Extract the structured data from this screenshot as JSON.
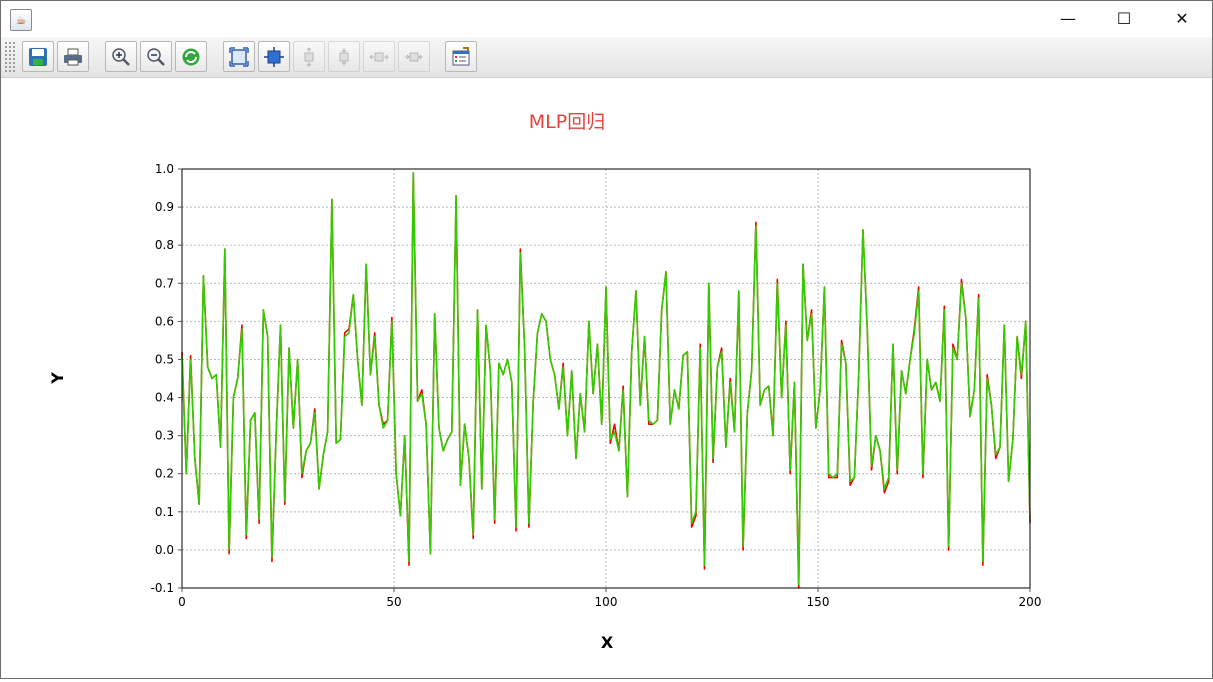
{
  "window": {
    "minimize_glyph": "—",
    "maximize_glyph": "☐",
    "close_glyph": "✕"
  },
  "toolbar": {
    "buttons": [
      {
        "name": "save-icon",
        "enabled": true
      },
      {
        "name": "print-icon",
        "enabled": true
      },
      {
        "name": "zoom-in-icon",
        "enabled": true
      },
      {
        "name": "zoom-out-icon",
        "enabled": true
      },
      {
        "name": "refresh-icon",
        "enabled": true
      },
      {
        "name": "fit-all-icon",
        "enabled": true
      },
      {
        "name": "fit-selected-icon",
        "enabled": true
      },
      {
        "name": "fit-vertical-icon",
        "enabled": false
      },
      {
        "name": "fit-vertical-alt-icon",
        "enabled": false
      },
      {
        "name": "fit-horizontal-icon",
        "enabled": false
      },
      {
        "name": "fit-horizontal-alt-icon",
        "enabled": false
      },
      {
        "name": "properties-icon",
        "enabled": true
      }
    ]
  },
  "chart_data": {
    "type": "line",
    "title": "MLP回归",
    "xlabel": "X",
    "ylabel": "Y",
    "xlim": [
      0,
      200
    ],
    "ylim": [
      -0.1,
      1.0
    ],
    "x_ticks": [
      "0",
      "50",
      "100",
      "150",
      "200"
    ],
    "y_ticks": [
      "-0.1",
      "0.0",
      "0.1",
      "0.2",
      "0.3",
      "0.4",
      "0.5",
      "0.6",
      "0.7",
      "0.8",
      "0.9",
      "1.0"
    ],
    "grid": true,
    "title_color": "#e8403c",
    "series": [
      {
        "color": "#ee0000",
        "values": [
          0.52,
          0.2,
          0.51,
          0.24,
          0.12,
          0.72,
          0.48,
          0.45,
          0.46,
          0.27,
          0.79,
          -0.01,
          0.4,
          0.45,
          0.59,
          0.03,
          0.34,
          0.36,
          0.07,
          0.63,
          0.56,
          -0.03,
          0.31,
          0.59,
          0.12,
          0.53,
          0.32,
          0.5,
          0.19,
          0.26,
          0.28,
          0.37,
          0.16,
          0.25,
          0.31,
          0.92,
          0.28,
          0.29,
          0.57,
          0.58,
          0.67,
          0.5,
          0.38,
          0.75,
          0.46,
          0.57,
          0.38,
          0.33,
          0.34,
          0.61,
          0.2,
          0.09,
          0.3,
          -0.04,
          0.99,
          0.39,
          0.42,
          0.33,
          -0.01,
          0.62,
          0.32,
          0.26,
          0.29,
          0.31,
          0.93,
          0.17,
          0.33,
          0.24,
          0.03,
          0.63,
          0.16,
          0.59,
          0.47,
          0.07,
          0.49,
          0.46,
          0.5,
          0.44,
          0.05,
          0.79,
          0.53,
          0.06,
          0.39,
          0.57,
          0.62,
          0.6,
          0.5,
          0.46,
          0.37,
          0.49,
          0.3,
          0.47,
          0.24,
          0.41,
          0.31,
          0.6,
          0.41,
          0.54,
          0.33,
          0.69,
          0.28,
          0.33,
          0.26,
          0.43,
          0.14,
          0.52,
          0.68,
          0.38,
          0.56,
          0.33,
          0.33,
          0.34,
          0.63,
          0.73,
          0.33,
          0.42,
          0.37,
          0.51,
          0.52,
          0.06,
          0.09,
          0.54,
          -0.05,
          0.7,
          0.23,
          0.48,
          0.53,
          0.27,
          0.45,
          0.31,
          0.68,
          0.0,
          0.36,
          0.47,
          0.86,
          0.38,
          0.42,
          0.43,
          0.3,
          0.71,
          0.4,
          0.6,
          0.2,
          0.44,
          -0.1,
          0.75,
          0.55,
          0.63,
          0.32,
          0.42,
          0.69,
          0.19,
          0.19,
          0.19,
          0.55,
          0.49,
          0.17,
          0.19,
          0.46,
          0.84,
          0.58,
          0.21,
          0.3,
          0.26,
          0.15,
          0.18,
          0.54,
          0.2,
          0.47,
          0.41,
          0.5,
          0.58,
          0.69,
          0.19,
          0.5,
          0.42,
          0.44,
          0.39,
          0.64,
          0.0,
          0.54,
          0.5,
          0.71,
          0.61,
          0.35,
          0.42,
          0.67,
          -0.04,
          0.46,
          0.38,
          0.24,
          0.27,
          0.59,
          0.18,
          0.29,
          0.56,
          0.45,
          0.6,
          0.07
        ]
      },
      {
        "color": "#33cc00",
        "values": [
          0.51,
          0.2,
          0.5,
          0.24,
          0.12,
          0.72,
          0.48,
          0.45,
          0.46,
          0.27,
          0.79,
          0.0,
          0.4,
          0.45,
          0.58,
          0.04,
          0.34,
          0.36,
          0.08,
          0.63,
          0.56,
          -0.02,
          0.31,
          0.59,
          0.13,
          0.53,
          0.32,
          0.5,
          0.2,
          0.26,
          0.28,
          0.36,
          0.16,
          0.25,
          0.31,
          0.92,
          0.28,
          0.29,
          0.56,
          0.57,
          0.67,
          0.5,
          0.38,
          0.75,
          0.46,
          0.56,
          0.38,
          0.32,
          0.34,
          0.6,
          0.2,
          0.09,
          0.3,
          -0.03,
          0.99,
          0.39,
          0.41,
          0.33,
          -0.01,
          0.62,
          0.32,
          0.26,
          0.29,
          0.31,
          0.93,
          0.17,
          0.33,
          0.24,
          0.04,
          0.63,
          0.16,
          0.59,
          0.47,
          0.08,
          0.49,
          0.46,
          0.5,
          0.44,
          0.06,
          0.78,
          0.53,
          0.07,
          0.39,
          0.57,
          0.62,
          0.6,
          0.5,
          0.46,
          0.37,
          0.48,
          0.3,
          0.47,
          0.24,
          0.41,
          0.31,
          0.6,
          0.41,
          0.54,
          0.33,
          0.69,
          0.29,
          0.31,
          0.26,
          0.42,
          0.14,
          0.52,
          0.68,
          0.38,
          0.56,
          0.34,
          0.33,
          0.34,
          0.63,
          0.73,
          0.33,
          0.42,
          0.37,
          0.51,
          0.52,
          0.07,
          0.1,
          0.53,
          -0.04,
          0.7,
          0.24,
          0.48,
          0.52,
          0.27,
          0.44,
          0.31,
          0.68,
          0.01,
          0.36,
          0.47,
          0.85,
          0.38,
          0.42,
          0.43,
          0.3,
          0.7,
          0.4,
          0.59,
          0.21,
          0.44,
          -0.09,
          0.75,
          0.55,
          0.62,
          0.32,
          0.42,
          0.69,
          0.2,
          0.19,
          0.2,
          0.54,
          0.49,
          0.18,
          0.19,
          0.46,
          0.84,
          0.58,
          0.22,
          0.3,
          0.26,
          0.16,
          0.19,
          0.54,
          0.21,
          0.47,
          0.41,
          0.5,
          0.57,
          0.68,
          0.2,
          0.5,
          0.42,
          0.44,
          0.39,
          0.63,
          0.01,
          0.53,
          0.5,
          0.7,
          0.61,
          0.35,
          0.42,
          0.66,
          -0.03,
          0.45,
          0.38,
          0.25,
          0.27,
          0.59,
          0.18,
          0.29,
          0.56,
          0.46,
          0.6,
          0.08
        ]
      }
    ]
  }
}
